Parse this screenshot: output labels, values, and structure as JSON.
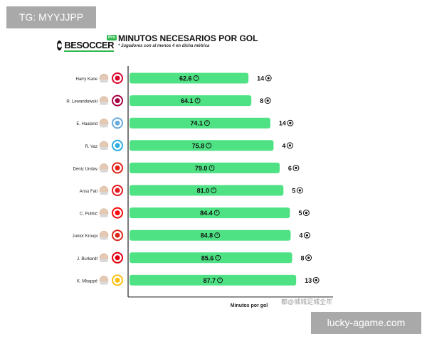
{
  "watermarks": {
    "top": "TG: MYYJJPP",
    "bottom": "lucky-agame.com"
  },
  "header": {
    "logo_text": "BESOCCER",
    "logo_badge": "Pro",
    "title": "MINUTOS NECESARIOS POR GOL",
    "subtitle": "* Jugadores con al menos 4 en dicha métrica"
  },
  "overlay_caption": "都@城城足城全年",
  "colors": {
    "bar": "#4ee284",
    "axis": "#222222",
    "text": "#111111"
  },
  "chart_data": {
    "type": "bar",
    "orientation": "horizontal",
    "title": "MINUTOS NECESARIOS POR GOL",
    "xlabel": "Minutos por gol",
    "ylabel": "",
    "xlim": [
      0,
      100
    ],
    "categories": [
      "Harry Kane",
      "R. Lewandowski",
      "E. Haaland",
      "R. Vaz",
      "Deniz Undav",
      "Ansu Fati",
      "C. Pulišić",
      "Junior Kroupi",
      "J. Burkardt",
      "K. Mbappé"
    ],
    "values": [
      62.6,
      64.1,
      74.1,
      75.8,
      79.0,
      81.0,
      84.4,
      84.8,
      85.6,
      87.7
    ],
    "value_labels": [
      "62.6",
      "64.1",
      "74.1",
      "75.8",
      "79.0",
      "81.0",
      "84.4",
      "84.8",
      "85.6",
      "87.7"
    ],
    "goals": [
      14,
      8,
      14,
      4,
      6,
      5,
      5,
      4,
      8,
      13
    ],
    "goal_labels": [
      "14",
      "8",
      "14",
      "4",
      "6",
      "5",
      "5",
      "4",
      "8",
      "13"
    ],
    "club_badges": [
      {
        "name": "bayern-badge",
        "color": "#dc052d"
      },
      {
        "name": "barcelona-badge",
        "color": "#a50044"
      },
      {
        "name": "man-city-badge",
        "color": "#6cabdd"
      },
      {
        "name": "marseille-badge",
        "color": "#2faee0"
      },
      {
        "name": "stuttgart-badge",
        "color": "#e32219"
      },
      {
        "name": "monaco-badge",
        "color": "#e51b22"
      },
      {
        "name": "milan-badge",
        "color": "#fb090b"
      },
      {
        "name": "bournemouth-badge",
        "color": "#da291c"
      },
      {
        "name": "frankfurt-badge",
        "color": "#e1000f"
      },
      {
        "name": "real-madrid-badge",
        "color": "#febe10"
      }
    ],
    "grid": false,
    "legend": "none"
  }
}
